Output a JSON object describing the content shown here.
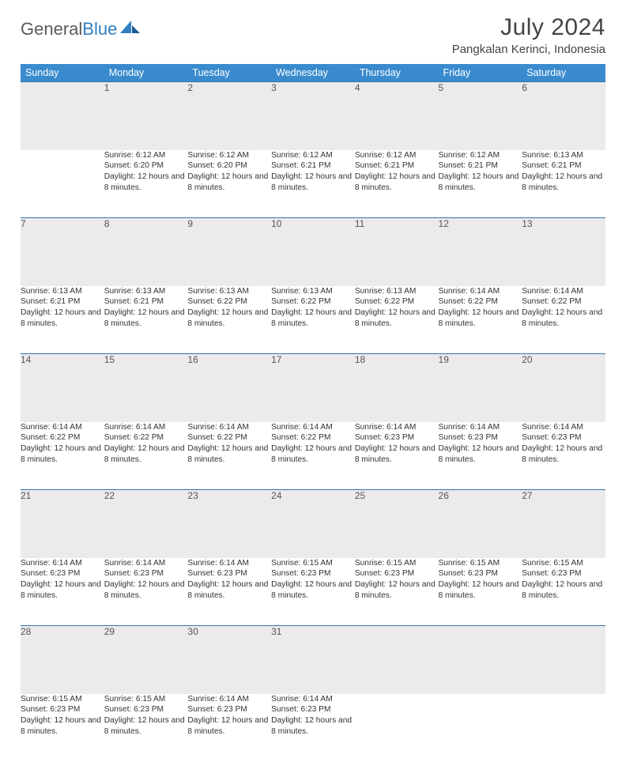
{
  "brand": {
    "part1": "General",
    "part2": "Blue"
  },
  "title": "July 2024",
  "location": "Pangkalan Kerinci, Indonesia",
  "colors": {
    "header_bg": "#3a8bce",
    "header_text": "#ffffff",
    "daynum_bg": "#ebebeb",
    "rule": "#3a72a8",
    "logo_gray": "#5a5a5a",
    "logo_blue": "#2f7fc2"
  },
  "weekdays": [
    "Sunday",
    "Monday",
    "Tuesday",
    "Wednesday",
    "Thursday",
    "Friday",
    "Saturday"
  ],
  "grid": {
    "start_weekday": 1,
    "days_in_month": 31
  },
  "days": {
    "1": {
      "sunrise": "6:12 AM",
      "sunset": "6:20 PM",
      "daylight": "12 hours and 8 minutes."
    },
    "2": {
      "sunrise": "6:12 AM",
      "sunset": "6:20 PM",
      "daylight": "12 hours and 8 minutes."
    },
    "3": {
      "sunrise": "6:12 AM",
      "sunset": "6:21 PM",
      "daylight": "12 hours and 8 minutes."
    },
    "4": {
      "sunrise": "6:12 AM",
      "sunset": "6:21 PM",
      "daylight": "12 hours and 8 minutes."
    },
    "5": {
      "sunrise": "6:12 AM",
      "sunset": "6:21 PM",
      "daylight": "12 hours and 8 minutes."
    },
    "6": {
      "sunrise": "6:13 AM",
      "sunset": "6:21 PM",
      "daylight": "12 hours and 8 minutes."
    },
    "7": {
      "sunrise": "6:13 AM",
      "sunset": "6:21 PM",
      "daylight": "12 hours and 8 minutes."
    },
    "8": {
      "sunrise": "6:13 AM",
      "sunset": "6:21 PM",
      "daylight": "12 hours and 8 minutes."
    },
    "9": {
      "sunrise": "6:13 AM",
      "sunset": "6:22 PM",
      "daylight": "12 hours and 8 minutes."
    },
    "10": {
      "sunrise": "6:13 AM",
      "sunset": "6:22 PM",
      "daylight": "12 hours and 8 minutes."
    },
    "11": {
      "sunrise": "6:13 AM",
      "sunset": "6:22 PM",
      "daylight": "12 hours and 8 minutes."
    },
    "12": {
      "sunrise": "6:14 AM",
      "sunset": "6:22 PM",
      "daylight": "12 hours and 8 minutes."
    },
    "13": {
      "sunrise": "6:14 AM",
      "sunset": "6:22 PM",
      "daylight": "12 hours and 8 minutes."
    },
    "14": {
      "sunrise": "6:14 AM",
      "sunset": "6:22 PM",
      "daylight": "12 hours and 8 minutes."
    },
    "15": {
      "sunrise": "6:14 AM",
      "sunset": "6:22 PM",
      "daylight": "12 hours and 8 minutes."
    },
    "16": {
      "sunrise": "6:14 AM",
      "sunset": "6:22 PM",
      "daylight": "12 hours and 8 minutes."
    },
    "17": {
      "sunrise": "6:14 AM",
      "sunset": "6:22 PM",
      "daylight": "12 hours and 8 minutes."
    },
    "18": {
      "sunrise": "6:14 AM",
      "sunset": "6:23 PM",
      "daylight": "12 hours and 8 minutes."
    },
    "19": {
      "sunrise": "6:14 AM",
      "sunset": "6:23 PM",
      "daylight": "12 hours and 8 minutes."
    },
    "20": {
      "sunrise": "6:14 AM",
      "sunset": "6:23 PM",
      "daylight": "12 hours and 8 minutes."
    },
    "21": {
      "sunrise": "6:14 AM",
      "sunset": "6:23 PM",
      "daylight": "12 hours and 8 minutes."
    },
    "22": {
      "sunrise": "6:14 AM",
      "sunset": "6:23 PM",
      "daylight": "12 hours and 8 minutes."
    },
    "23": {
      "sunrise": "6:14 AM",
      "sunset": "6:23 PM",
      "daylight": "12 hours and 8 minutes."
    },
    "24": {
      "sunrise": "6:15 AM",
      "sunset": "6:23 PM",
      "daylight": "12 hours and 8 minutes."
    },
    "25": {
      "sunrise": "6:15 AM",
      "sunset": "6:23 PM",
      "daylight": "12 hours and 8 minutes."
    },
    "26": {
      "sunrise": "6:15 AM",
      "sunset": "6:23 PM",
      "daylight": "12 hours and 8 minutes."
    },
    "27": {
      "sunrise": "6:15 AM",
      "sunset": "6:23 PM",
      "daylight": "12 hours and 8 minutes."
    },
    "28": {
      "sunrise": "6:15 AM",
      "sunset": "6:23 PM",
      "daylight": "12 hours and 8 minutes."
    },
    "29": {
      "sunrise": "6:15 AM",
      "sunset": "6:23 PM",
      "daylight": "12 hours and 8 minutes."
    },
    "30": {
      "sunrise": "6:14 AM",
      "sunset": "6:23 PM",
      "daylight": "12 hours and 8 minutes."
    },
    "31": {
      "sunrise": "6:14 AM",
      "sunset": "6:23 PM",
      "daylight": "12 hours and 8 minutes."
    }
  },
  "labels": {
    "sunrise": "Sunrise:",
    "sunset": "Sunset:",
    "daylight": "Daylight:"
  }
}
